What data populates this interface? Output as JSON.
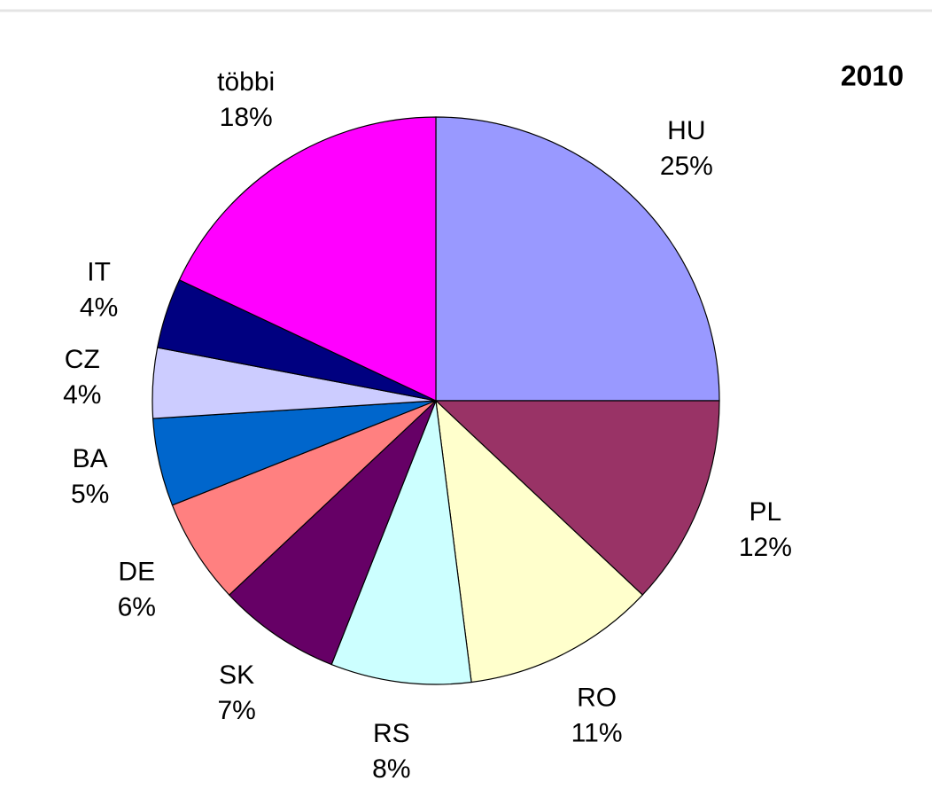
{
  "chart_data": {
    "type": "pie",
    "title": "2010",
    "categories": [
      "HU",
      "PL",
      "RO",
      "RS",
      "SK",
      "DE",
      "BA",
      "CZ",
      "IT",
      "többi"
    ],
    "values": [
      25,
      12,
      11,
      8,
      7,
      6,
      5,
      4,
      4,
      18
    ],
    "value_labels": [
      "25%",
      "12%",
      "11%",
      "8%",
      "7%",
      "6%",
      "5%",
      "4%",
      "4%",
      "18%"
    ],
    "colors": [
      "#9999ff",
      "#993366",
      "#ffffcc",
      "#ccffff",
      "#660066",
      "#ff8080",
      "#0066cc",
      "#ccccff",
      "#000080",
      "#ff00ff"
    ]
  }
}
